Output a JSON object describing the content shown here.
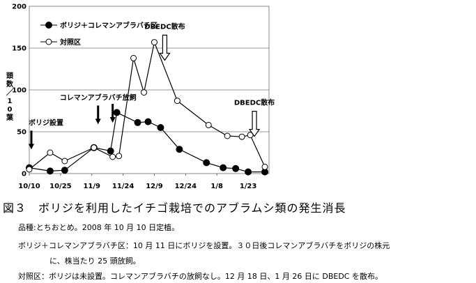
{
  "chart_data": {
    "type": "line",
    "ylabel": "頭数／10葉",
    "ylim": [
      0,
      200
    ],
    "yticks": [
      0,
      50,
      100,
      150,
      200
    ],
    "x_tick_labels": [
      "10/10",
      "10/25",
      "11/9",
      "11/24",
      "12/9",
      "12/24",
      "1/8",
      "1/23"
    ],
    "x_tick_values": [
      0,
      15,
      30,
      45,
      60,
      75,
      90,
      105
    ],
    "xlim": [
      0,
      115
    ],
    "grid": true,
    "legend_position": "top-left",
    "series": [
      {
        "name": "ボリジ＋コレマンアブラバチ区",
        "marker": "filled-circle",
        "color": "#000000",
        "points": [
          [
            0,
            7
          ],
          [
            10,
            3
          ],
          [
            17,
            4
          ],
          [
            31,
            31
          ],
          [
            39,
            27
          ],
          [
            42,
            73
          ],
          [
            52,
            61
          ],
          [
            57,
            62
          ],
          [
            63,
            55
          ],
          [
            72,
            29
          ],
          [
            85,
            13
          ],
          [
            93,
            7
          ],
          [
            99,
            6
          ],
          [
            105,
            2
          ],
          [
            113,
            2
          ]
        ]
      },
      {
        "name": "対照区",
        "marker": "open-circle",
        "color": "#000000",
        "points": [
          [
            0,
            5
          ],
          [
            10,
            25
          ],
          [
            17,
            15
          ],
          [
            31,
            31
          ],
          [
            40,
            20
          ],
          [
            43,
            21
          ],
          [
            50,
            138
          ],
          [
            55,
            97
          ],
          [
            60,
            157
          ],
          [
            71,
            87
          ],
          [
            86,
            58
          ],
          [
            95,
            45
          ],
          [
            102,
            44
          ],
          [
            106,
            46
          ],
          [
            113,
            8
          ]
        ]
      }
    ],
    "annotations": [
      {
        "text": "ボリジ設置",
        "arrow": "filled",
        "x": 1,
        "y_text": 58
      },
      {
        "text": "コレマンアブラバチ放飼",
        "arrow": "filled",
        "x": 33,
        "y_text": 88
      },
      {
        "text": "",
        "arrow": "filled",
        "x": 40,
        "y_text": 0
      },
      {
        "text": "DBEDC散布",
        "arrow": "open",
        "x": 65,
        "y_text": 173
      },
      {
        "text": "DBEDC散布",
        "arrow": "open",
        "x": 108,
        "y_text": 82
      }
    ]
  },
  "caption": {
    "figure_title": "図３　ボリジを利用したイチゴ栽培でのアブラムシ類の発生消長",
    "notes": [
      "品種:とちおとめ。2008 年 10 月 10 日定植。",
      "ボリジ＋コレマンアブラバチ区：10 月 11 日にボリジを設置。３０日後コレマンアブラバチをボリジの株元",
      "に、株当たり 25 頭放飼。",
      "対照区：ボリジは未設置。コレマンアブラバチの放飼なし。12 月 18 日、1 月 26 日に DBEDC を散布。"
    ]
  }
}
